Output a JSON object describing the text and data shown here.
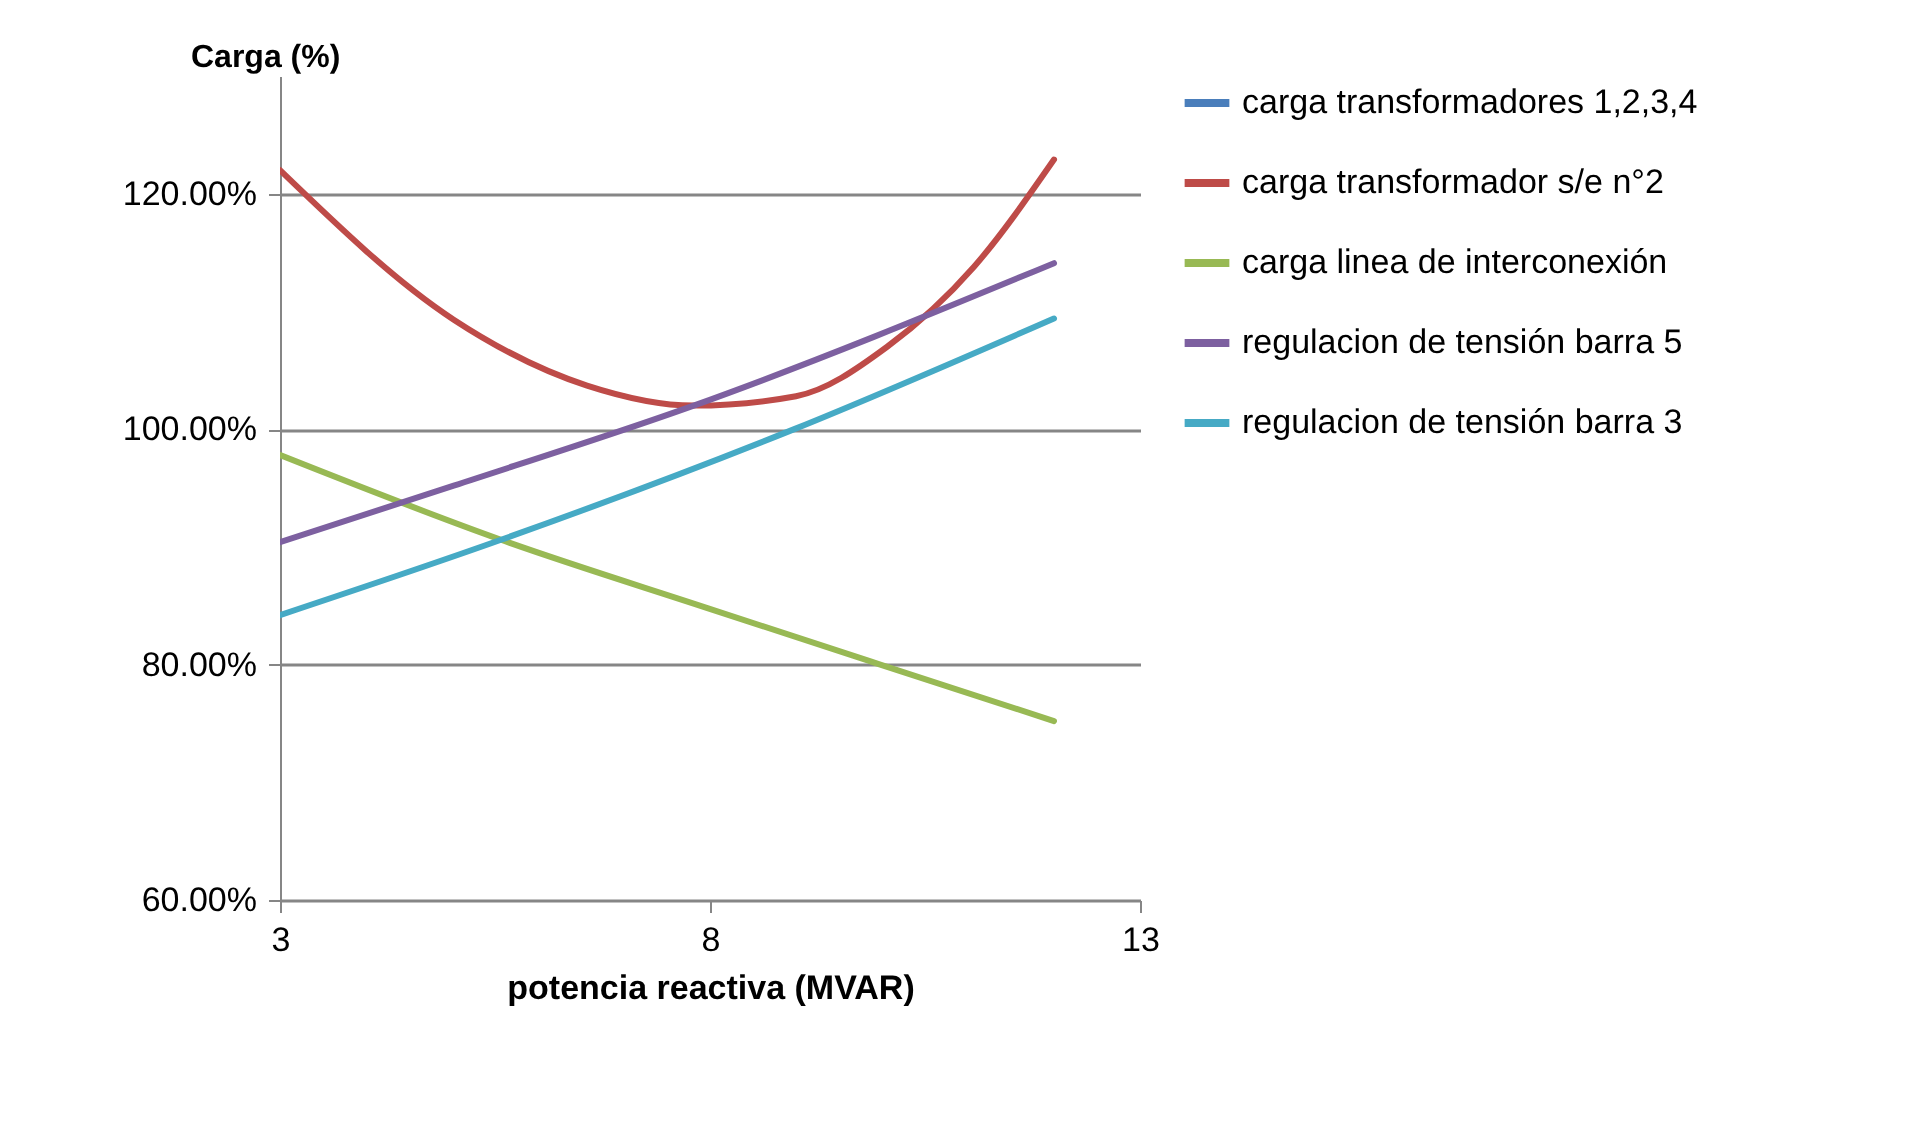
{
  "chart_data": {
    "type": "line",
    "xlabel": "potencia reactiva (MVAR)",
    "ylabel": "Carga (%)",
    "xlim": [
      3,
      13
    ],
    "xticks": [
      3,
      8,
      13
    ],
    "ylim": [
      60,
      130
    ],
    "yticks": [
      {
        "value": 60,
        "label": "60.00%"
      },
      {
        "value": 80,
        "label": "80.00%"
      },
      {
        "value": 100,
        "label": "100.00%"
      },
      {
        "value": 120,
        "label": "120.00%"
      }
    ],
    "grid": "y",
    "legend": "right",
    "series": [
      {
        "name": "carga transformadores 1,2,3,4",
        "color": "#4a7ebb"
      },
      {
        "name": "carga transformador s/e n°2",
        "color": "#be4b48",
        "x": [
          3,
          5.02,
          6.57,
          7.81,
          9.0,
          10.06,
          11.07,
          12
        ],
        "values": [
          122.0,
          109.3,
          103.7,
          102.0,
          102.8,
          107.0,
          113.8,
          122.9
        ]
      },
      {
        "name": "carga linea de interconexión",
        "color": "#98b954",
        "x": [
          3,
          5.57,
          7.97,
          9.98,
          12
        ],
        "values": [
          97.8,
          90.6,
          84.8,
          80.0,
          75.2
        ]
      },
      {
        "name": "regulacion de tensión barra 5",
        "color": "#7d60a0",
        "x": [
          3,
          5.02,
          7.81,
          12
        ],
        "values": [
          90.4,
          95.2,
          102.0,
          114.1
        ]
      },
      {
        "name": "regulacion de tensión barra 3",
        "color": "#46aac5",
        "x": [
          3,
          5.57,
          8.98,
          12
        ],
        "values": [
          84.2,
          90.6,
          100.0,
          109.4
        ]
      }
    ]
  }
}
